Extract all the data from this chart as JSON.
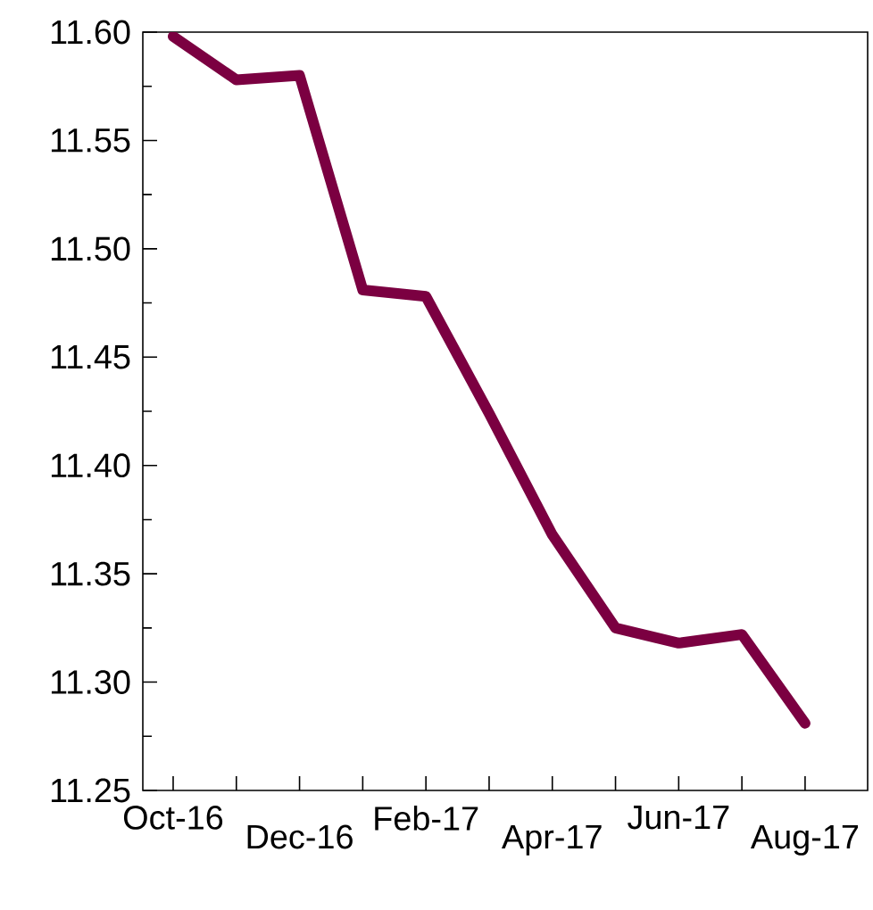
{
  "chart_data": {
    "type": "line",
    "categories": [
      "Oct-16",
      null,
      "Dec-16",
      null,
      "Feb-17",
      null,
      "Apr-17",
      null,
      "Jun-17",
      null,
      "Aug-17"
    ],
    "values": [
      11.598,
      11.578,
      11.58,
      11.481,
      11.478,
      11.424,
      11.368,
      11.325,
      11.318,
      11.322,
      11.281
    ],
    "color": "#7b0041",
    "ylim": [
      11.25,
      11.6
    ],
    "yticks": [
      {
        "value": 11.25,
        "label": "11.25"
      },
      {
        "value": 11.3,
        "label": "11.30"
      },
      {
        "value": 11.35,
        "label": "11.35"
      },
      {
        "value": 11.4,
        "label": "11.40"
      },
      {
        "value": 11.45,
        "label": "11.45"
      },
      {
        "value": 11.5,
        "label": "11.50"
      },
      {
        "value": 11.55,
        "label": "11.55"
      },
      {
        "value": 11.6,
        "label": "11.60"
      }
    ],
    "marker": "none",
    "line_style": "solid"
  }
}
